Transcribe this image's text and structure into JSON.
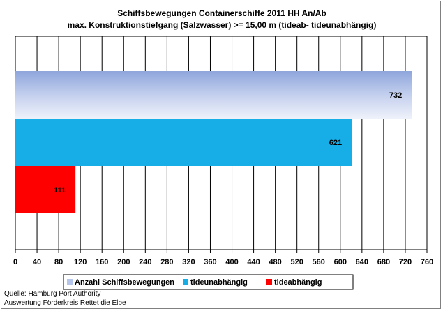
{
  "chart_data": {
    "type": "bar",
    "orientation": "horizontal",
    "title": "Schiffsbewegungen  Containerschiffe  2011 HH An/Ab",
    "subtitle": "max. Konstruktionstiefgang  (Salzwasser)  >= 15,00 m (tideab-  tideunabhängig)",
    "xlim": [
      0,
      760
    ],
    "xticks": [
      0,
      40,
      80,
      120,
      160,
      200,
      240,
      280,
      320,
      360,
      400,
      440,
      480,
      520,
      560,
      600,
      640,
      680,
      720,
      760
    ],
    "grid": true,
    "legend_position": "bottom",
    "series": [
      {
        "name": "Anzahl Schiffsbewegungen",
        "value": 732,
        "color": "#b4c4ea"
      },
      {
        "name": "tideunabhängig",
        "value": 621,
        "color": "#17aee8"
      },
      {
        "name": "tideabhängig",
        "value": 111,
        "color": "#ff0000"
      }
    ]
  },
  "footer": {
    "line1": "Quelle: Hamburg Port Authority",
    "line2": "Auswertung Förderkreis Rettet die Elbe"
  }
}
